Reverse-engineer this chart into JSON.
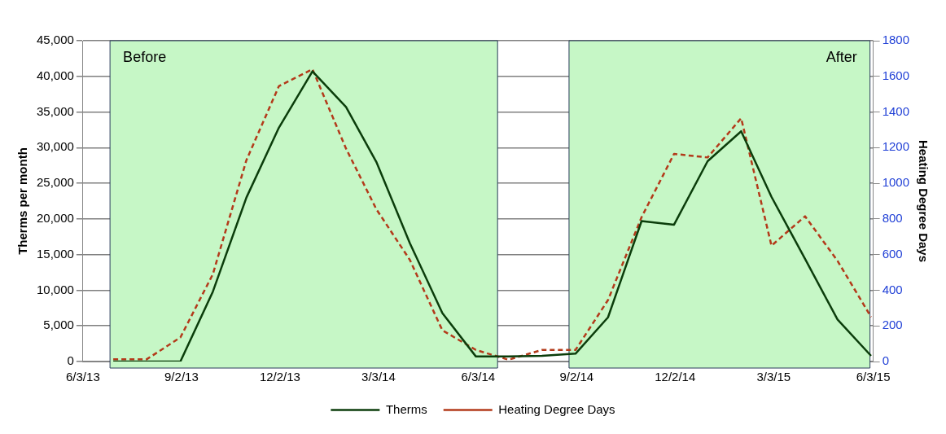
{
  "chart_data": {
    "type": "line",
    "ylabel": "Therms per month",
    "y2label": "Heating Degree Days",
    "x": [
      "2013-07-01",
      "2013-08-01",
      "2013-09-01",
      "2013-10-01",
      "2013-11-01",
      "2013-12-01",
      "2014-01-01",
      "2014-02-01",
      "2014-03-01",
      "2014-04-01",
      "2014-05-01",
      "2014-06-01",
      "2014-07-01",
      "2014-08-01",
      "2014-09-01",
      "2014-10-01",
      "2014-11-01",
      "2014-12-01",
      "2015-01-01",
      "2015-02-01",
      "2015-03-01",
      "2015-04-01",
      "2015-05-01",
      "2015-06-01"
    ],
    "series": [
      {
        "name": "Therms",
        "color": "#0b3d0b",
        "values": [
          0,
          0,
          0,
          9800,
          23000,
          32800,
          40700,
          35700,
          28000,
          16600,
          6800,
          700,
          700,
          800,
          1100,
          6200,
          19700,
          19200,
          28100,
          32300,
          23100,
          14400,
          5900,
          800
        ]
      },
      {
        "name": "Heating Degree Days",
        "color": "#b33a1a",
        "axis": "y2",
        "line_style": "dashed",
        "values": [
          13,
          13,
          135,
          490,
          1130,
          1545,
          1640,
          1195,
          855,
          570,
          175,
          65,
          10,
          65,
          65,
          345,
          810,
          1165,
          1145,
          1365,
          650,
          815,
          565,
          250
        ]
      }
    ],
    "xlim": [
      "2013-06-03",
      "2015-06-03"
    ],
    "xticks": [
      {
        "value": "2013-06-03",
        "label": "6/3/13"
      },
      {
        "value": "2013-09-02",
        "label": "9/2/13"
      },
      {
        "value": "2013-12-02",
        "label": "12/2/13"
      },
      {
        "value": "2014-03-03",
        "label": "3/3/14"
      },
      {
        "value": "2014-06-03",
        "label": "6/3/14"
      },
      {
        "value": "2014-09-02",
        "label": "9/2/14"
      },
      {
        "value": "2014-12-02",
        "label": "12/2/14"
      },
      {
        "value": "2015-03-03",
        "label": "3/3/15"
      },
      {
        "value": "2015-06-03",
        "label": "6/3/15"
      }
    ],
    "ylim": [
      0,
      45000
    ],
    "yticks": [
      {
        "value": 0,
        "label": "0"
      },
      {
        "value": 5000,
        "label": "5,000"
      },
      {
        "value": 10000,
        "label": "10,000"
      },
      {
        "value": 15000,
        "label": "15,000"
      },
      {
        "value": 20000,
        "label": "20,000"
      },
      {
        "value": 25000,
        "label": "25,000"
      },
      {
        "value": 30000,
        "label": "30,000"
      },
      {
        "value": 35000,
        "label": "35,000"
      },
      {
        "value": 40000,
        "label": "40,000"
      },
      {
        "value": 45000,
        "label": "45,000"
      }
    ],
    "y2lim": [
      0,
      1800
    ],
    "y2ticks": [
      0,
      200,
      400,
      600,
      800,
      1000,
      1200,
      1400,
      1600,
      1800
    ],
    "bands": [
      {
        "axis": "x",
        "from": "2013-06-28",
        "to": "2014-06-21",
        "label": "Before",
        "color": "#c6f7c6"
      },
      {
        "axis": "x",
        "from": "2014-08-26",
        "to": "2015-05-31",
        "label": "After",
        "color": "#c6f7c6"
      }
    ],
    "grid": "y",
    "legend": "bottom",
    "marker": "none"
  }
}
